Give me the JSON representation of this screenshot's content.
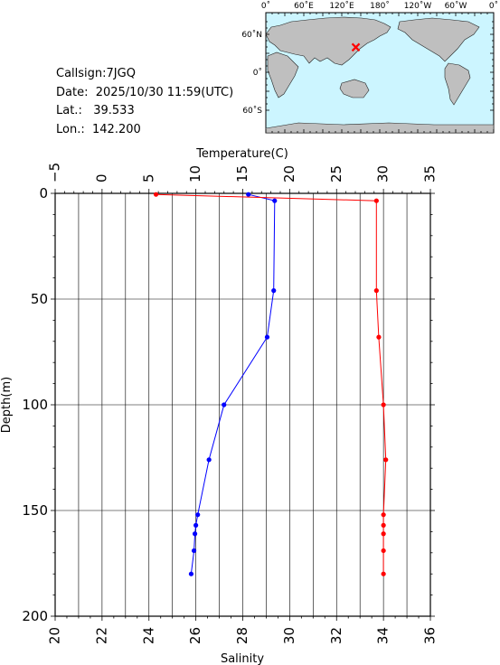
{
  "station": {
    "callsign_label": "Callsign:",
    "callsign": "7JGQ",
    "date_label": "Date:",
    "date": "2025/10/30 11:59(UTC)",
    "lat_label": "Lat.:",
    "lat": "39.533",
    "lon_label": "Lon.:",
    "lon": "142.200"
  },
  "map": {
    "top_labels": [
      "0˚",
      "60˚E",
      "120˚E",
      "180˚",
      "120˚W",
      "60˚W",
      "0˚"
    ],
    "side_labels": [
      "60˚N",
      "0˚",
      "60˚S"
    ],
    "ocean_color": "#ccf5ff",
    "land_color": "#bfbfbf",
    "marker_color": "#ff0000"
  },
  "chart_data": {
    "type": "line",
    "top_axis_label": "Temperature(C)",
    "bottom_axis_label": "Salinity",
    "y_axis_label": "Depth(m)",
    "temperature_ticks": [
      "−5",
      "0",
      "5",
      "10",
      "15",
      "20",
      "25",
      "30",
      "35"
    ],
    "salinity_ticks": [
      "20",
      "22",
      "24",
      "26",
      "28",
      "30",
      "32",
      "34",
      "36"
    ],
    "depth_ticks": [
      "0",
      "50",
      "100",
      "150",
      "200"
    ],
    "temperature_range": [
      -5,
      35
    ],
    "salinity_range": [
      20,
      36
    ],
    "depth_range": [
      0,
      200
    ],
    "y_inverted": true,
    "grid": true,
    "series": [
      {
        "axis": "temperature",
        "color": "#0000ff",
        "points": [
          {
            "value": 15.6,
            "depth": 0.5
          },
          {
            "value": 18.4,
            "depth": 3.5
          },
          {
            "value": 18.3,
            "depth": 46
          },
          {
            "value": 17.6,
            "depth": 68
          },
          {
            "value": 13.0,
            "depth": 100
          },
          {
            "value": 11.4,
            "depth": 126
          },
          {
            "value": 10.2,
            "depth": 152
          },
          {
            "value": 10.0,
            "depth": 157
          },
          {
            "value": 9.9,
            "depth": 161
          },
          {
            "value": 9.8,
            "depth": 169
          },
          {
            "value": 9.5,
            "depth": 180
          }
        ]
      },
      {
        "axis": "salinity",
        "color": "#ff0000",
        "points": [
          {
            "value": 24.3,
            "depth": 0.5
          },
          {
            "value": 33.7,
            "depth": 3.5
          },
          {
            "value": 33.7,
            "depth": 46
          },
          {
            "value": 33.8,
            "depth": 68
          },
          {
            "value": 34.0,
            "depth": 100
          },
          {
            "value": 34.1,
            "depth": 126
          },
          {
            "value": 34.0,
            "depth": 152
          },
          {
            "value": 34.0,
            "depth": 157
          },
          {
            "value": 34.0,
            "depth": 161
          },
          {
            "value": 34.0,
            "depth": 169
          },
          {
            "value": 34.0,
            "depth": 180
          }
        ]
      }
    ]
  }
}
